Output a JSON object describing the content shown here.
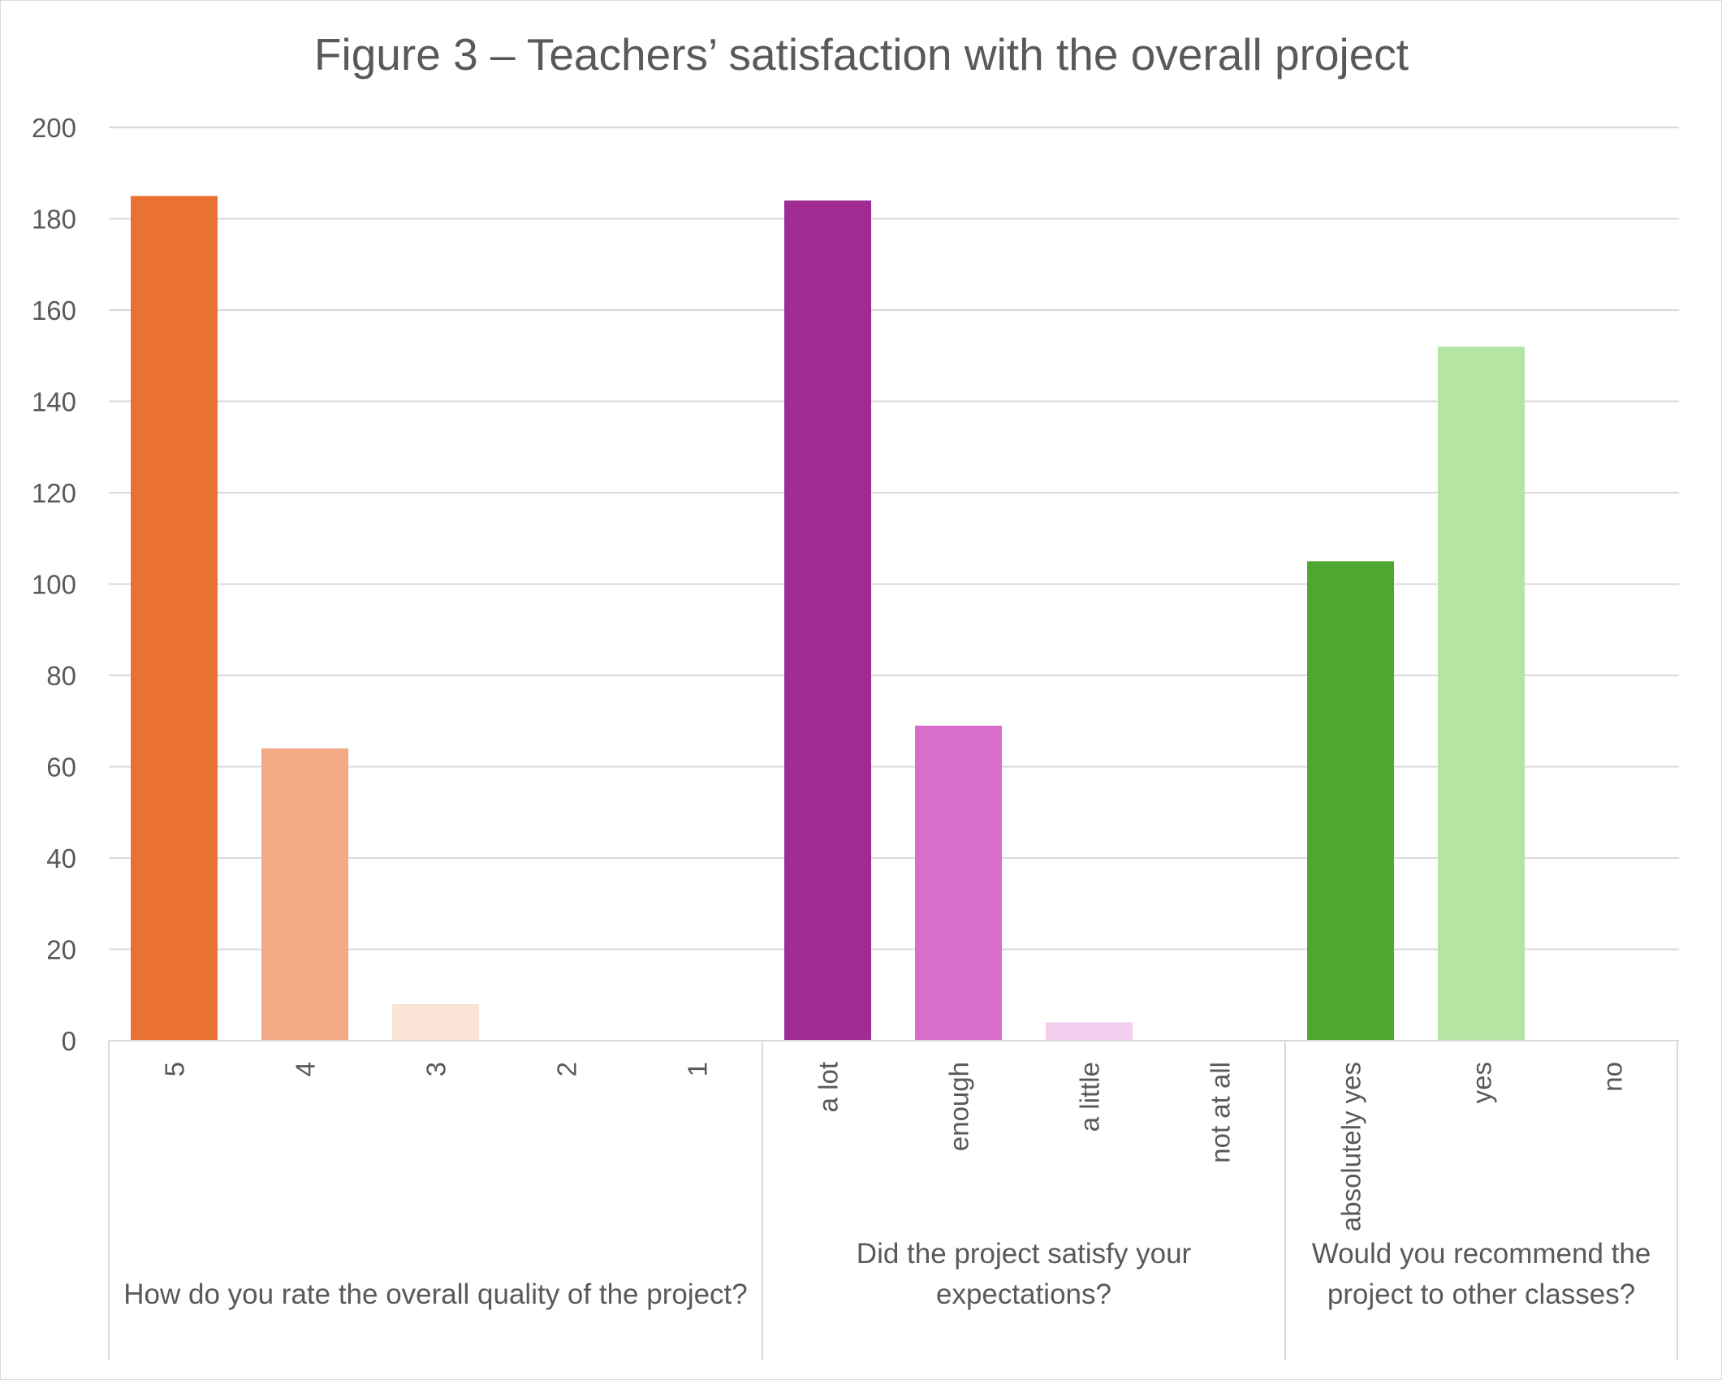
{
  "chart_data": {
    "type": "bar",
    "title": "Figure 3 – Teachers’ satisfaction with the overall project",
    "xlabel": "",
    "ylabel": "",
    "ylim": [
      0,
      200
    ],
    "yticks": [
      "0",
      "20",
      "40",
      "60",
      "80",
      "100",
      "120",
      "140",
      "160",
      "180",
      "200"
    ],
    "grid": true,
    "legend": "none",
    "groups": [
      {
        "label_lines": [
          "How do you rate the overall quality of the project?"
        ],
        "categories": [
          "5",
          "4",
          "3",
          "2",
          "1"
        ],
        "values": [
          185,
          64,
          8,
          0,
          0
        ],
        "colors": [
          "#E97132",
          "#F2AA84",
          "#FBE3D6",
          "#FBE3D6",
          "#FBE3D6"
        ]
      },
      {
        "label_lines": [
          "Did the project satisfy your",
          "expectations?"
        ],
        "categories": [
          "a lot",
          "enough",
          "a little",
          "not at all"
        ],
        "values": [
          184,
          69,
          4,
          0
        ],
        "colors": [
          "#A02B93",
          "#D86ECC",
          "#F2CEEF",
          "#F2CEEF"
        ]
      },
      {
        "label_lines": [
          "Would you recommend the",
          "project to other classes?"
        ],
        "categories": [
          "absolutely yes",
          "yes",
          "no"
        ],
        "values": [
          105,
          152,
          0
        ],
        "colors": [
          "#4EA72E",
          "#B4E5A2",
          "#B4E5A2"
        ]
      }
    ]
  }
}
